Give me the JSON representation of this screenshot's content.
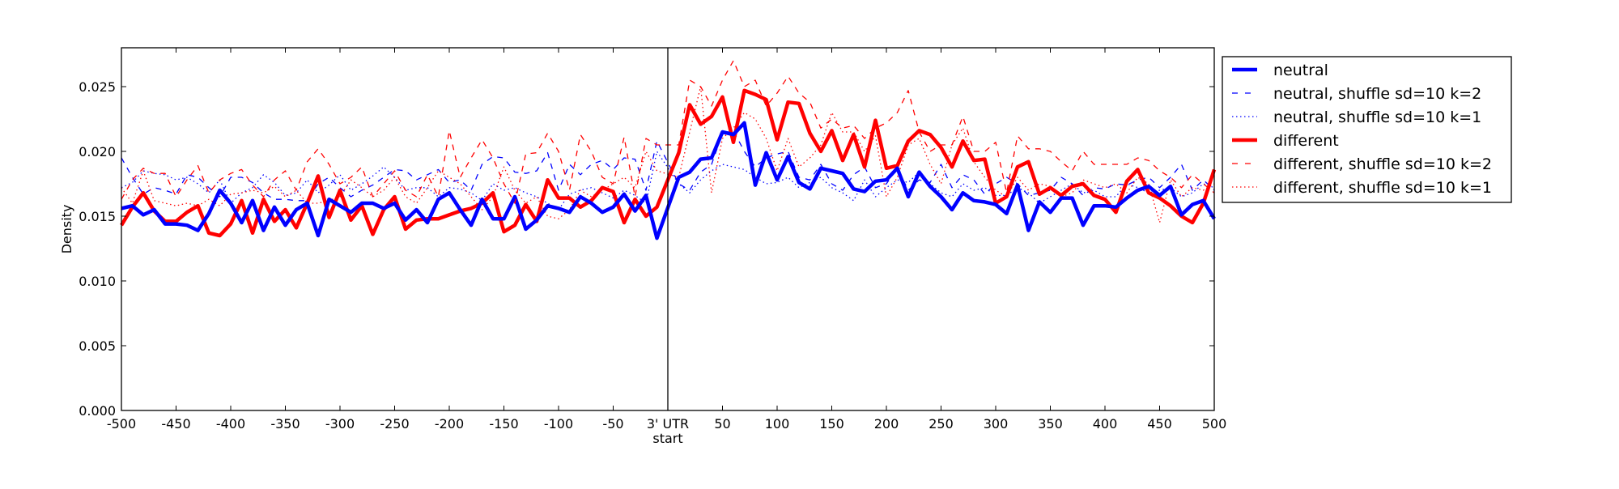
{
  "chart_data": {
    "type": "line",
    "title": "",
    "xlabel": "",
    "ylabel": "Density",
    "xlim": [
      -500,
      500
    ],
    "ylim": [
      0,
      0.028
    ],
    "grid": false,
    "legend_placement": "outside-top-right",
    "vertical_marker_x": 0,
    "xticks": [
      -500,
      -450,
      -400,
      -350,
      -300,
      -250,
      -200,
      -150,
      -100,
      -50,
      0,
      50,
      100,
      150,
      200,
      250,
      300,
      350,
      400,
      450,
      500
    ],
    "xtick_labels": [
      "-500",
      "-450",
      "-400",
      "-350",
      "-300",
      "-250",
      "-200",
      "-150",
      "-100",
      "-50",
      "3' UTR",
      "50",
      "100",
      "150",
      "200",
      "250",
      "300",
      "350",
      "400",
      "450",
      "500"
    ],
    "xtick_label_zero_line2": "start",
    "yticks": [
      0,
      0.005,
      0.01,
      0.015,
      0.02,
      0.025
    ],
    "ytick_labels": [
      "0.000",
      "0.005",
      "0.010",
      "0.015",
      "0.020",
      "0.025"
    ],
    "x_left": [
      -500,
      -490,
      -480,
      -470,
      -460,
      -450,
      -440,
      -430,
      -420,
      -410,
      -400,
      -390,
      -380,
      -370,
      -360,
      -350,
      -340,
      -330,
      -320,
      -310,
      -300,
      -290,
      -280,
      -270,
      -260,
      -250,
      -240,
      -230,
      -220,
      -210,
      -200,
      -190,
      -180,
      -170,
      -160,
      -150,
      -140,
      -130,
      -120,
      -110,
      -100,
      -90,
      -80,
      -70,
      -60,
      -50,
      -40,
      -30,
      -20,
      -10
    ],
    "x_right": [
      10,
      20,
      30,
      40,
      50,
      60,
      70,
      80,
      90,
      100,
      110,
      120,
      130,
      140,
      150,
      160,
      170,
      180,
      190,
      200,
      210,
      220,
      230,
      240,
      250,
      260,
      270,
      280,
      290,
      300,
      310,
      320,
      330,
      340,
      350,
      360,
      370,
      380,
      390,
      400,
      410,
      420,
      430,
      440,
      450,
      460,
      470,
      480,
      490,
      500
    ],
    "series": [
      {
        "name": "neutral",
        "color": "#0000ff",
        "style": "solid",
        "width": "thick",
        "left": [
          0.0156,
          0.0158,
          0.0151,
          0.0155,
          0.0144,
          0.0144,
          0.0143,
          0.0139,
          0.0152,
          0.017,
          0.016,
          0.0145,
          0.0162,
          0.0139,
          0.0157,
          0.0143,
          0.0155,
          0.016,
          0.0135,
          0.0163,
          0.0158,
          0.0153,
          0.016,
          0.016,
          0.0156,
          0.016,
          0.0147,
          0.0155,
          0.0145,
          0.0163,
          0.0168,
          0.0155,
          0.0143,
          0.0163,
          0.0148,
          0.0148,
          0.0165,
          0.014,
          0.0147,
          0.0158,
          0.0156,
          0.0153,
          0.0165,
          0.016,
          0.0153,
          0.0157,
          0.0167,
          0.0154,
          0.0166,
          0.0133
        ],
        "right": [
          0.018,
          0.0184,
          0.0194,
          0.0195,
          0.0215,
          0.0213,
          0.0222,
          0.0174,
          0.0199,
          0.0178,
          0.0196,
          0.0176,
          0.0171,
          0.0187,
          0.0185,
          0.0183,
          0.0171,
          0.0169,
          0.0177,
          0.0178,
          0.0187,
          0.0165,
          0.0184,
          0.0173,
          0.0165,
          0.0155,
          0.0168,
          0.0162,
          0.0161,
          0.0159,
          0.0152,
          0.0174,
          0.0139,
          0.0161,
          0.0153,
          0.0164,
          0.0164,
          0.0143,
          0.0158,
          0.0158,
          0.0157,
          0.0164,
          0.017,
          0.0173,
          0.0166,
          0.0173,
          0.0151,
          0.0159,
          0.0162,
          0.0148
        ]
      },
      {
        "name": "neutral, shuffle sd=10 k=2",
        "color": "#0000ff",
        "style": "dashed",
        "width": "thin",
        "left": [
          0.0195,
          0.018,
          0.0167,
          0.0172,
          0.017,
          0.0167,
          0.0182,
          0.018,
          0.0172,
          0.0165,
          0.018,
          0.018,
          0.0176,
          0.0168,
          0.0163,
          0.0163,
          0.0162,
          0.0162,
          0.0175,
          0.018,
          0.0172,
          0.0165,
          0.017,
          0.0174,
          0.018,
          0.0186,
          0.0185,
          0.0178,
          0.0182,
          0.0186,
          0.0176,
          0.0178,
          0.017,
          0.019,
          0.0196,
          0.0195,
          0.0184,
          0.0183,
          0.0185,
          0.0199,
          0.017,
          0.019,
          0.0182,
          0.019,
          0.0193,
          0.0186,
          0.0195,
          0.0194,
          0.017,
          0.0208
        ],
        "right": [
          0.0175,
          0.017,
          0.0184,
          0.019,
          0.0214,
          0.0216,
          0.02,
          0.0188,
          0.0195,
          0.0198,
          0.02,
          0.018,
          0.0178,
          0.019,
          0.0175,
          0.017,
          0.0182,
          0.0188,
          0.0172,
          0.0175,
          0.0187,
          0.017,
          0.0178,
          0.0176,
          0.019,
          0.0172,
          0.0182,
          0.0178,
          0.0167,
          0.0175,
          0.018,
          0.0175,
          0.0166,
          0.0168,
          0.017,
          0.018,
          0.0175,
          0.0166,
          0.0172,
          0.0171,
          0.0175,
          0.0174,
          0.0178,
          0.018,
          0.0172,
          0.018,
          0.019,
          0.017,
          0.0178,
          0.017
        ]
      },
      {
        "name": "neutral, shuffle sd=10 k=1",
        "color": "#0000ff",
        "style": "dotted",
        "width": "thin",
        "left": [
          0.0172,
          0.0176,
          0.0185,
          0.0183,
          0.0182,
          0.0178,
          0.018,
          0.0175,
          0.0168,
          0.0178,
          0.016,
          0.0168,
          0.0172,
          0.0182,
          0.0176,
          0.0166,
          0.0168,
          0.0178,
          0.0168,
          0.0174,
          0.0182,
          0.017,
          0.0175,
          0.0181,
          0.0188,
          0.018,
          0.017,
          0.0172,
          0.0172,
          0.0165,
          0.0172,
          0.0171,
          0.0168,
          0.0162,
          0.0175,
          0.017,
          0.0172,
          0.0168,
          0.0165,
          0.016,
          0.0155,
          0.0167,
          0.017,
          0.0172,
          0.0168,
          0.0164,
          0.017,
          0.0166,
          0.016,
          0.02
        ],
        "right": [
          0.0175,
          0.0168,
          0.0178,
          0.0185,
          0.019,
          0.0188,
          0.0186,
          0.018,
          0.0175,
          0.0176,
          0.018,
          0.0172,
          0.0176,
          0.018,
          0.0172,
          0.0168,
          0.0162,
          0.0178,
          0.0165,
          0.0172,
          0.0178,
          0.0176,
          0.0184,
          0.0175,
          0.0168,
          0.0165,
          0.0175,
          0.017,
          0.0172,
          0.0166,
          0.0166,
          0.0172,
          0.0168,
          0.016,
          0.0165,
          0.017,
          0.0175,
          0.0168,
          0.017,
          0.0165,
          0.0165,
          0.0175,
          0.0172,
          0.0168,
          0.017,
          0.0172,
          0.0165,
          0.0168,
          0.0175,
          0.0172
        ]
      },
      {
        "name": "different",
        "color": "#ff0000",
        "style": "solid",
        "width": "thick",
        "left": [
          0.0143,
          0.0157,
          0.0168,
          0.0154,
          0.0146,
          0.0146,
          0.0153,
          0.0158,
          0.0137,
          0.0135,
          0.0144,
          0.0162,
          0.0137,
          0.0163,
          0.0146,
          0.0155,
          0.0141,
          0.016,
          0.0181,
          0.0149,
          0.017,
          0.0147,
          0.0158,
          0.0136,
          0.0155,
          0.0165,
          0.014,
          0.0147,
          0.0148,
          0.0148,
          0.0151,
          0.0154,
          0.0156,
          0.016,
          0.0168,
          0.0138,
          0.0143,
          0.0159,
          0.0146,
          0.0178,
          0.0164,
          0.0164,
          0.0157,
          0.0162,
          0.0172,
          0.0169,
          0.0145,
          0.0163,
          0.015,
          0.0157
        ],
        "right": [
          0.0199,
          0.0236,
          0.0221,
          0.0227,
          0.0242,
          0.0207,
          0.0247,
          0.0244,
          0.024,
          0.0209,
          0.0238,
          0.0237,
          0.0214,
          0.02,
          0.0216,
          0.0193,
          0.0213,
          0.0188,
          0.0224,
          0.0187,
          0.0189,
          0.0208,
          0.0216,
          0.0213,
          0.0203,
          0.0188,
          0.0208,
          0.0193,
          0.0194,
          0.016,
          0.0165,
          0.0188,
          0.0192,
          0.0167,
          0.0172,
          0.0166,
          0.0173,
          0.0175,
          0.0166,
          0.0163,
          0.0153,
          0.0177,
          0.0186,
          0.0168,
          0.0164,
          0.0158,
          0.015,
          0.0145,
          0.016,
          0.0186
        ]
      },
      {
        "name": "different, shuffle sd=10 k=2",
        "color": "#ff0000",
        "style": "dashed",
        "width": "thin",
        "left": [
          0.0163,
          0.0178,
          0.0187,
          0.0183,
          0.0183,
          0.0165,
          0.0178,
          0.0189,
          0.0168,
          0.0178,
          0.0183,
          0.0186,
          0.0174,
          0.0165,
          0.0178,
          0.0185,
          0.017,
          0.0192,
          0.0202,
          0.019,
          0.0175,
          0.018,
          0.0188,
          0.0165,
          0.0175,
          0.0185,
          0.017,
          0.0165,
          0.0182,
          0.0165,
          0.0216,
          0.018,
          0.0195,
          0.0209,
          0.0195,
          0.0175,
          0.016,
          0.0198,
          0.0199,
          0.0214,
          0.02,
          0.017,
          0.0213,
          0.02,
          0.018,
          0.0175,
          0.0211,
          0.0165,
          0.021,
          0.0205
        ],
        "right": [
          0.0205,
          0.0255,
          0.025,
          0.0235,
          0.0255,
          0.027,
          0.025,
          0.0255,
          0.0235,
          0.0245,
          0.0258,
          0.0245,
          0.0238,
          0.0218,
          0.0225,
          0.0218,
          0.022,
          0.021,
          0.0218,
          0.0222,
          0.023,
          0.0247,
          0.0215,
          0.02,
          0.0205,
          0.0205,
          0.0227,
          0.02,
          0.02,
          0.0207,
          0.0168,
          0.0212,
          0.0202,
          0.0202,
          0.02,
          0.0192,
          0.0185,
          0.02,
          0.019,
          0.019,
          0.019,
          0.019,
          0.0195,
          0.0193,
          0.0185,
          0.018,
          0.0172,
          0.0182,
          0.0175,
          0.0168
        ]
      },
      {
        "name": "different, shuffle sd=10 k=1",
        "color": "#ff0000",
        "style": "dotted",
        "width": "thin",
        "left": [
          0.0172,
          0.016,
          0.0185,
          0.0162,
          0.016,
          0.0158,
          0.016,
          0.0158,
          0.0163,
          0.0158,
          0.0167,
          0.0168,
          0.017,
          0.0168,
          0.0173,
          0.0165,
          0.017,
          0.016,
          0.016,
          0.0162,
          0.0165,
          0.0178,
          0.0172,
          0.0165,
          0.017,
          0.018,
          0.0165,
          0.016,
          0.0172,
          0.0185,
          0.018,
          0.0175,
          0.0165,
          0.0155,
          0.0165,
          0.0188,
          0.017,
          0.016,
          0.0165,
          0.015,
          0.0148,
          0.0155,
          0.017,
          0.0165,
          0.017,
          0.0175,
          0.018,
          0.0172,
          0.02,
          0.0185
        ],
        "right": [
          0.018,
          0.0215,
          0.025,
          0.0168,
          0.021,
          0.0218,
          0.023,
          0.0225,
          0.021,
          0.0185,
          0.021,
          0.0188,
          0.0195,
          0.0205,
          0.023,
          0.0215,
          0.0215,
          0.02,
          0.0212,
          0.0165,
          0.018,
          0.0205,
          0.021,
          0.019,
          0.0175,
          0.0205,
          0.0218,
          0.0192,
          0.018,
          0.017,
          0.0165,
          0.018,
          0.017,
          0.0175,
          0.0173,
          0.0165,
          0.0168,
          0.0178,
          0.0175,
          0.0172,
          0.0175,
          0.0168,
          0.018,
          0.0175,
          0.0145,
          0.0178,
          0.0165,
          0.0172,
          0.017,
          0.0175
        ]
      }
    ]
  }
}
